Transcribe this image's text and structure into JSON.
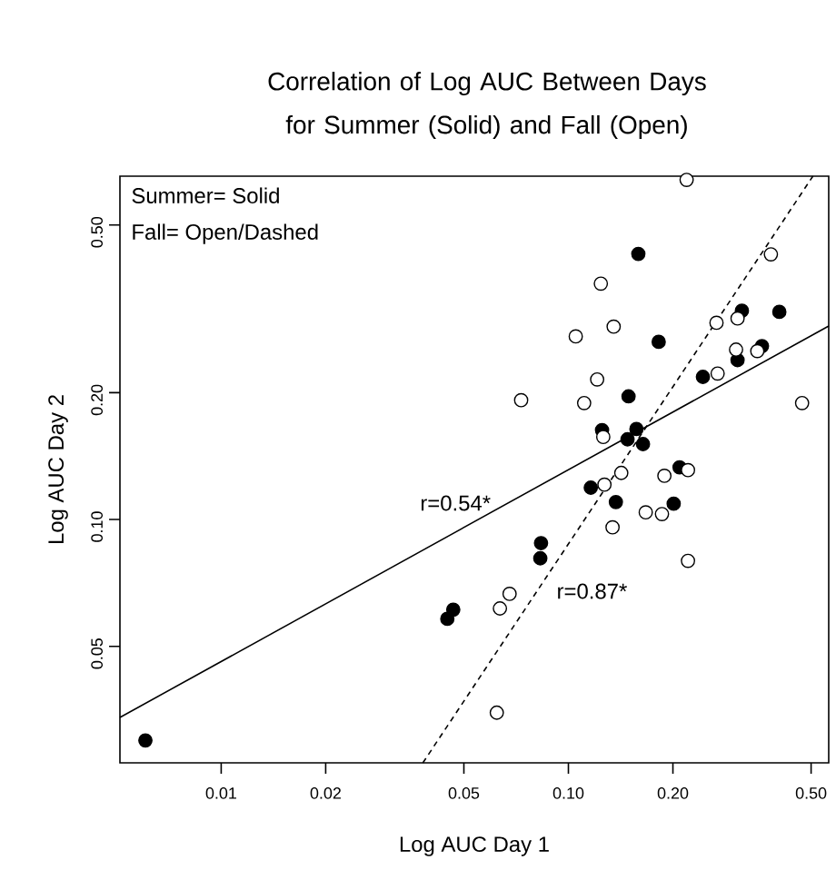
{
  "chart_data": {
    "type": "scatter",
    "title": "Correlation of Log AUC Between Days for Summer (Solid) and Fall (Open)",
    "xlabel": "Log AUC Day 1",
    "ylabel": "Log AUC Day 2",
    "log": "xy",
    "xlim": [
      0.00511,
      0.562
    ],
    "ylim": [
      0.02645,
      0.653
    ],
    "xticks": [
      0.01,
      0.02,
      0.05,
      {
        "value": 0.1,
        "label": "0.10"
      },
      {
        "value": 0.2,
        "label": "0.20"
      },
      {
        "value": 0.5,
        "label": "0.50"
      }
    ],
    "yticks": [
      0.05,
      {
        "value": 0.1,
        "label": "0.10"
      },
      {
        "value": 0.2,
        "label": "0.20"
      },
      {
        "value": 0.5,
        "label": "0.50"
      }
    ],
    "series": [
      {
        "color": "#000000",
        "marker": "circle",
        "x": [
          0.00605,
          0.0466,
          0.0448,
          0.159,
          0.182,
          0.316,
          0.405,
          0.361,
          0.307,
          0.244,
          0.149,
          0.125,
          0.157,
          0.148,
          0.164,
          0.209,
          0.116,
          0.137,
          0.201,
          0.0834,
          0.083
        ],
        "values": [
          0.0299,
          0.0611,
          0.0581,
          0.427,
          0.264,
          0.313,
          0.311,
          0.258,
          0.239,
          0.218,
          0.196,
          0.163,
          0.164,
          0.155,
          0.151,
          0.133,
          0.119,
          0.11,
          0.109,
          0.0879,
          0.0809
        ]
      },
      {
        "color": "#ffffff",
        "marker": "circle",
        "x": [
          0.219,
          0.383,
          0.124,
          0.135,
          0.105,
          0.267,
          0.307,
          0.304,
          0.35,
          0.269,
          0.121,
          0.0731,
          0.111,
          0.471,
          0.126,
          0.142,
          0.127,
          0.189,
          0.221,
          0.167,
          0.186,
          0.134,
          0.221,
          0.0677,
          0.0635,
          0.0622
        ],
        "values": [
          0.64,
          0.426,
          0.363,
          0.287,
          0.272,
          0.293,
          0.3,
          0.253,
          0.251,
          0.222,
          0.215,
          0.192,
          0.189,
          0.189,
          0.157,
          0.129,
          0.121,
          0.127,
          0.131,
          0.104,
          0.103,
          0.0958,
          0.0798,
          0.0666,
          0.0615,
          0.0348
        ]
      },
      {
        "type": "line",
        "color": "#000000",
        "line_style": "solid",
        "x": [
          0.00511,
          0.562
        ],
        "values": [
          0.0339,
          0.288
        ]
      },
      {
        "type": "line",
        "color": "#000000",
        "line_style": "dashed",
        "x": [
          0.0381,
          0.506
        ],
        "values": [
          0.02645,
          0.653
        ]
      }
    ],
    "annotations": [
      "Summer= Solid",
      "Fall= Open/Dashed",
      {
        "text": "r=0.54*",
        "x": 0.05,
        "y": 0.0957
      },
      {
        "text": "r=0.87*",
        "x": 0.0848,
        "y": 0.0713
      }
    ]
  }
}
